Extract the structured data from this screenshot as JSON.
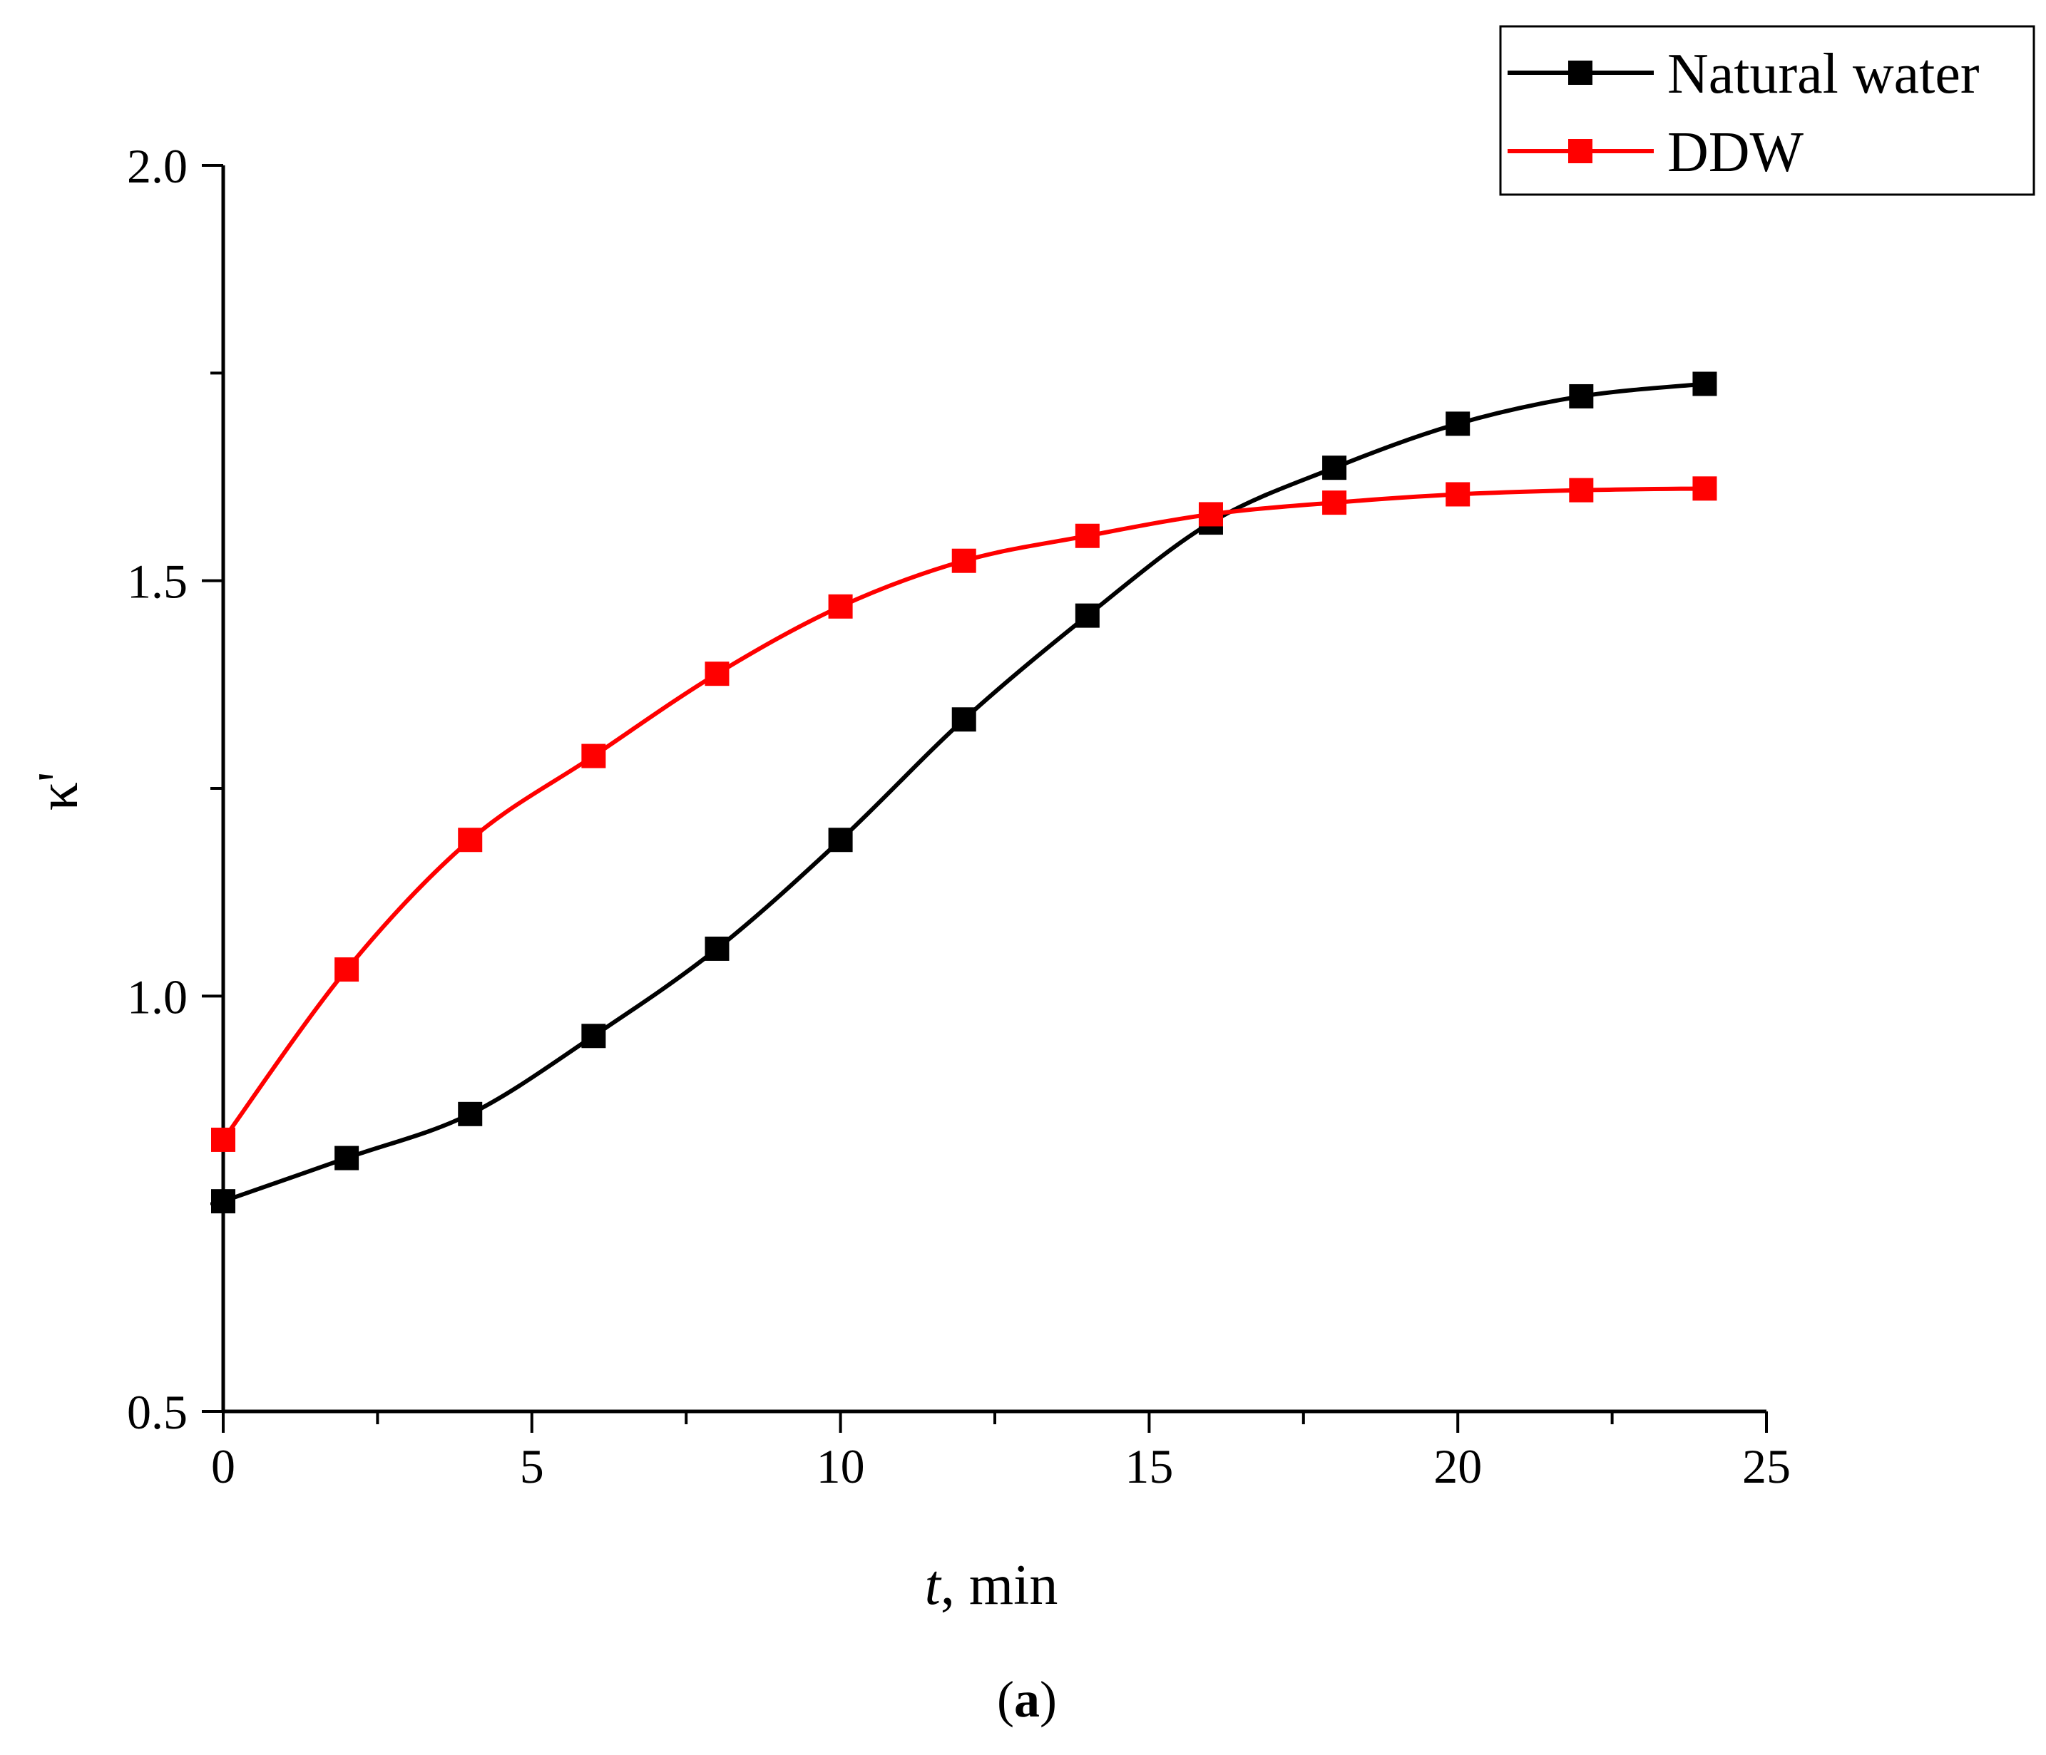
{
  "chart_data": {
    "type": "line",
    "title": "",
    "xlabel": "t, min",
    "xlabel_italic_part": "t",
    "xlabel_rest": ", min",
    "ylabel": "κ'",
    "xlim": [
      0,
      25
    ],
    "ylim": [
      0.5,
      2.0
    ],
    "xticks": [
      "0",
      "5",
      "10",
      "15",
      "20",
      "25"
    ],
    "yticks": [
      "0.5",
      "1.0",
      "1.5",
      "2.0"
    ],
    "x": [
      0,
      2,
      4,
      6,
      8,
      10,
      12,
      14,
      16,
      18,
      20,
      22,
      24
    ],
    "series": [
      {
        "name": "Natural water",
        "color": "#000000",
        "values": [
          0.753,
          0.805,
          0.858,
          0.952,
          1.057,
          1.188,
          1.333,
          1.458,
          1.57,
          1.636,
          1.689,
          1.722,
          1.737
        ]
      },
      {
        "name": "DDW",
        "color": "#ff0000",
        "values": [
          0.827,
          1.032,
          1.188,
          1.289,
          1.388,
          1.469,
          1.524,
          1.554,
          1.58,
          1.594,
          1.604,
          1.609,
          1.611
        ]
      }
    ],
    "legend_position": "top-right",
    "caption": "(a)",
    "caption_bold_part": "a"
  }
}
